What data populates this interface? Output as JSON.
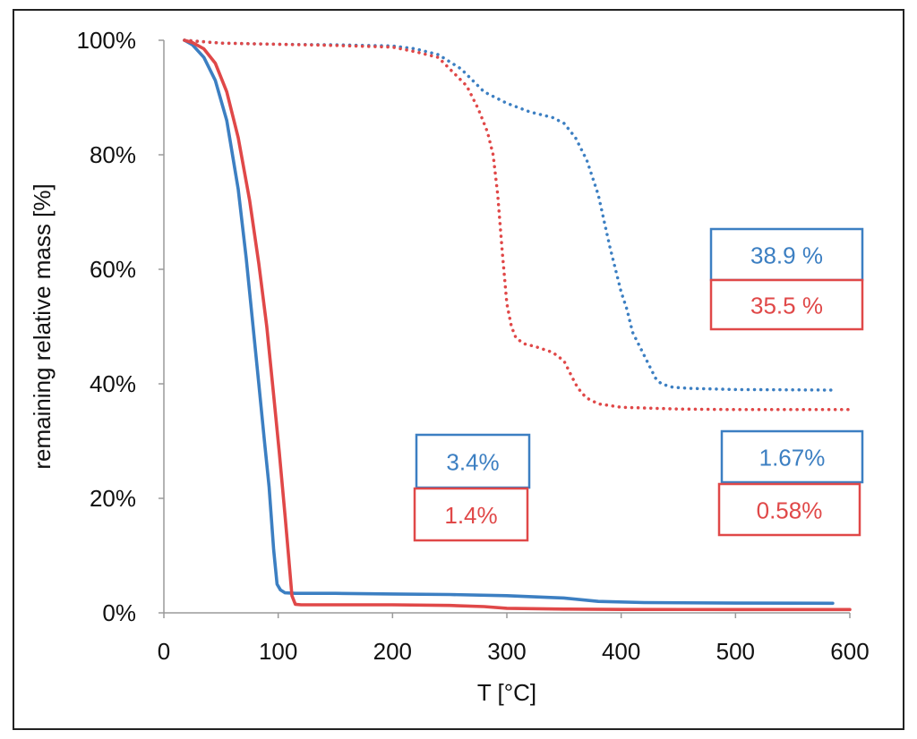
{
  "chart_data": {
    "type": "line",
    "title": "",
    "xlabel": "T [°C]",
    "ylabel": "remaining relative mass [%]",
    "xlim": [
      0,
      600
    ],
    "ylim": [
      0,
      100
    ],
    "x_ticks": [
      "0",
      "100",
      "200",
      "300",
      "400",
      "500",
      "600"
    ],
    "x_tick_values": [
      0,
      100,
      200,
      300,
      400,
      500,
      600
    ],
    "y_ticks": [
      "0%",
      "20%",
      "40%",
      "60%",
      "80%",
      "100%"
    ],
    "y_tick_values": [
      0,
      20,
      40,
      60,
      80,
      100
    ],
    "grid": false,
    "colors": {
      "blue": "#3c7fc2",
      "red": "#e04848"
    },
    "series": [
      {
        "name": "blue-solid",
        "color": "blue",
        "style": "solid",
        "x": [
          18,
          25,
          35,
          45,
          55,
          65,
          72,
          78,
          83,
          88,
          92,
          96,
          99,
          102,
          106,
          115,
          150,
          200,
          250,
          300,
          350,
          380,
          420,
          500,
          585
        ],
        "y": [
          100,
          99.2,
          97,
          93,
          86,
          74,
          62,
          50,
          40,
          30,
          22,
          11,
          5,
          4,
          3.5,
          3.4,
          3.4,
          3.3,
          3.2,
          3.0,
          2.6,
          2.0,
          1.8,
          1.7,
          1.67
        ]
      },
      {
        "name": "red-solid",
        "color": "red",
        "style": "solid",
        "x": [
          18,
          25,
          35,
          45,
          55,
          65,
          75,
          83,
          90,
          96,
          101,
          106,
          109,
          112,
          115,
          120,
          150,
          200,
          250,
          280,
          300,
          350,
          400,
          500,
          600
        ],
        "y": [
          100,
          99.6,
          98.5,
          96,
          91,
          83,
          72,
          61,
          50,
          38,
          28,
          17,
          10,
          3,
          1.5,
          1.4,
          1.4,
          1.4,
          1.3,
          1.1,
          0.8,
          0.65,
          0.6,
          0.58,
          0.58
        ]
      },
      {
        "name": "blue-dotted",
        "color": "blue",
        "style": "dotted",
        "x": [
          18,
          50,
          100,
          150,
          200,
          220,
          240,
          260,
          270,
          280,
          300,
          320,
          340,
          350,
          360,
          370,
          380,
          390,
          400,
          405,
          410,
          415,
          420,
          425,
          430,
          435,
          445,
          460,
          500,
          585
        ],
        "y": [
          100,
          99.5,
          99.3,
          99.2,
          99,
          98.5,
          97.5,
          95,
          93,
          91,
          89,
          87.5,
          86.5,
          85.5,
          83,
          79,
          73,
          64,
          56,
          53,
          49,
          47,
          45,
          43,
          41,
          40,
          39.4,
          39.2,
          39,
          38.9
        ]
      },
      {
        "name": "red-dotted",
        "color": "red",
        "style": "dotted",
        "x": [
          18,
          50,
          100,
          150,
          200,
          220,
          240,
          255,
          265,
          275,
          283,
          288,
          292,
          296,
          300,
          304,
          308,
          315,
          325,
          340,
          350,
          355,
          360,
          365,
          370,
          380,
          400,
          450,
          500,
          600
        ],
        "y": [
          100,
          99.5,
          99.3,
          99.1,
          98.8,
          98,
          97,
          94,
          92,
          88,
          84,
          80,
          73,
          63,
          54,
          50,
          48,
          47,
          46.5,
          45.5,
          44,
          42,
          40,
          38.5,
          37.5,
          36.5,
          35.9,
          35.6,
          35.5,
          35.5
        ]
      }
    ],
    "annotations": [
      {
        "label": "38.9 %",
        "color": "blue"
      },
      {
        "label": "35.5 %",
        "color": "red"
      },
      {
        "label": "3.4%",
        "color": "blue"
      },
      {
        "label": "1.4%",
        "color": "red"
      },
      {
        "label": "1.67%",
        "color": "blue"
      },
      {
        "label": "0.58%",
        "color": "red"
      }
    ]
  }
}
